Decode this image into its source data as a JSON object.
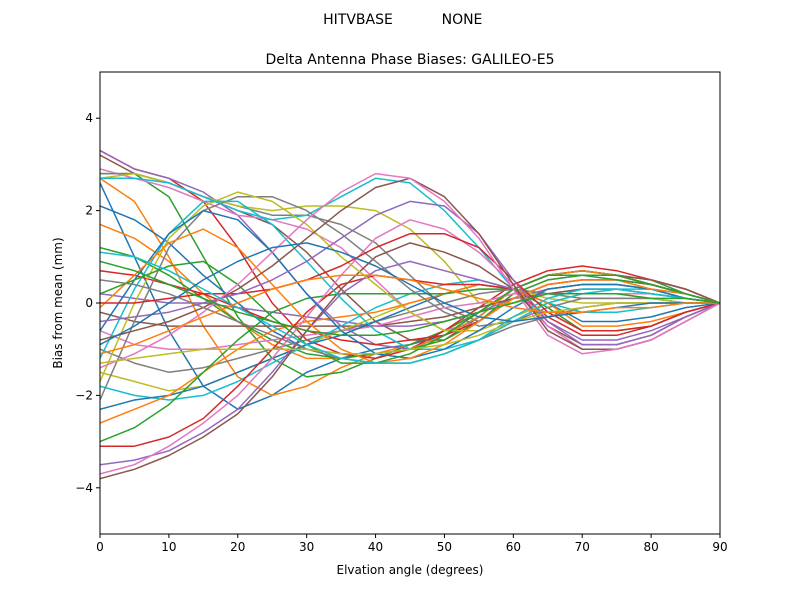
{
  "chart_data": {
    "type": "line",
    "suptitle_left": "HITVBASE",
    "suptitle_right": "NONE",
    "title": "Delta Antenna Phase Biases: GALILEO-E5",
    "xlabel": "Elvation angle (degrees)",
    "ylabel": "Bias from mean (mm)",
    "xlim": [
      0,
      90
    ],
    "ylim": [
      -5,
      5
    ],
    "xticks": [
      0,
      10,
      20,
      30,
      40,
      50,
      60,
      70,
      80,
      90
    ],
    "yticks": [
      -4,
      -2,
      0,
      2,
      4
    ],
    "ytick_labels": [
      "−4",
      "−2",
      "0",
      "2",
      "4"
    ],
    "grid": false,
    "legend": "none",
    "x": [
      0,
      5,
      10,
      15,
      20,
      25,
      30,
      35,
      40,
      45,
      50,
      55,
      60,
      65,
      70,
      75,
      80,
      85,
      90
    ],
    "palette": [
      "#1f77b4",
      "#ff7f0e",
      "#2ca02c",
      "#d62728",
      "#9467bd",
      "#8c564b",
      "#e377c2",
      "#7f7f7f",
      "#bcbd22",
      "#17becf"
    ],
    "series": [
      {
        "values": [
          2.6,
          1.0,
          -0.6,
          -1.8,
          -2.3,
          -2.0,
          -1.5,
          -1.2,
          -1.0,
          -0.9,
          -0.7,
          -0.3,
          0.3,
          0.6,
          0.7,
          0.6,
          0.4,
          0.2,
          0.0
        ]
      },
      {
        "values": [
          2.7,
          2.2,
          1.0,
          -0.5,
          -1.6,
          -2.0,
          -1.8,
          -1.4,
          -1.1,
          -0.9,
          -0.6,
          -0.2,
          0.3,
          0.6,
          0.7,
          0.6,
          0.4,
          0.2,
          0.0
        ]
      },
      {
        "values": [
          2.8,
          2.8,
          2.3,
          1.0,
          -0.3,
          -1.2,
          -1.6,
          -1.5,
          -1.2,
          -0.9,
          -0.6,
          -0.2,
          0.3,
          0.6,
          0.7,
          0.6,
          0.5,
          0.2,
          0.0
        ]
      },
      {
        "values": [
          3.3,
          2.9,
          2.7,
          2.2,
          1.2,
          0.0,
          -0.8,
          -1.1,
          -1.2,
          -1.0,
          -0.6,
          -0.1,
          0.4,
          0.7,
          0.8,
          0.7,
          0.5,
          0.3,
          0.0
        ]
      },
      {
        "values": [
          3.3,
          2.9,
          2.7,
          2.4,
          1.9,
          1.1,
          0.2,
          -0.5,
          -0.9,
          -1.0,
          -0.7,
          -0.2,
          0.3,
          0.6,
          0.7,
          0.6,
          0.5,
          0.3,
          0.0
        ]
      },
      {
        "values": [
          3.2,
          2.8,
          2.6,
          2.3,
          2.0,
          1.7,
          1.1,
          0.3,
          -0.4,
          -0.8,
          -0.8,
          -0.3,
          0.3,
          0.6,
          0.7,
          0.6,
          0.5,
          0.3,
          0.0
        ]
      },
      {
        "values": [
          2.9,
          2.7,
          2.5,
          2.2,
          1.9,
          1.8,
          1.6,
          1.2,
          0.5,
          -0.2,
          -0.6,
          -0.4,
          0.2,
          0.5,
          0.6,
          0.6,
          0.4,
          0.2,
          0.0
        ]
      },
      {
        "values": [
          2.8,
          2.8,
          2.6,
          2.3,
          2.1,
          1.9,
          1.9,
          1.7,
          1.3,
          0.6,
          -0.1,
          -0.4,
          0.1,
          0.4,
          0.5,
          0.5,
          0.4,
          0.2,
          0.0
        ]
      },
      {
        "values": [
          2.7,
          2.8,
          2.6,
          2.3,
          2.1,
          2.0,
          2.1,
          2.1,
          2.0,
          1.6,
          0.9,
          0.0,
          0.0,
          0.3,
          0.4,
          0.4,
          0.3,
          0.2,
          0.0
        ]
      },
      {
        "values": [
          2.7,
          2.7,
          2.6,
          2.3,
          2.0,
          1.8,
          1.9,
          2.3,
          2.7,
          2.6,
          2.0,
          1.2,
          0.3,
          0.2,
          0.3,
          0.3,
          0.3,
          0.1,
          0.0
        ]
      },
      {
        "values": [
          2.1,
          1.8,
          1.3,
          0.6,
          0.0,
          -0.6,
          -1.0,
          -1.1,
          -1.1,
          -1.0,
          -0.7,
          -0.3,
          0.3,
          0.6,
          0.7,
          0.6,
          0.4,
          0.2,
          0.0
        ]
      },
      {
        "values": [
          1.7,
          1.4,
          0.9,
          0.2,
          -0.4,
          -0.9,
          -1.2,
          -1.2,
          -1.1,
          -1.0,
          -0.7,
          -0.3,
          0.3,
          0.6,
          0.7,
          0.6,
          0.4,
          0.2,
          0.0
        ]
      },
      {
        "values": [
          1.2,
          1.0,
          0.6,
          0.1,
          -0.4,
          -0.8,
          -1.1,
          -1.2,
          -1.1,
          -1.0,
          -0.8,
          -0.4,
          0.2,
          0.5,
          0.6,
          0.6,
          0.4,
          0.2,
          0.0
        ]
      },
      {
        "values": [
          0.7,
          0.6,
          0.4,
          0.2,
          -0.1,
          -0.4,
          -0.6,
          -0.8,
          -0.9,
          -0.8,
          -0.7,
          -0.4,
          0.1,
          0.4,
          0.5,
          0.5,
          0.4,
          0.2,
          0.0
        ]
      },
      {
        "values": [
          0.2,
          0.1,
          0.0,
          0.0,
          -0.1,
          -0.2,
          -0.3,
          -0.4,
          -0.5,
          -0.5,
          -0.4,
          -0.2,
          0.1,
          0.3,
          0.4,
          0.4,
          0.3,
          0.2,
          0.0
        ]
      },
      {
        "values": [
          -0.2,
          -0.4,
          -0.5,
          -0.5,
          -0.5,
          -0.5,
          -0.5,
          -0.5,
          -0.5,
          -0.4,
          -0.3,
          -0.1,
          0.1,
          0.2,
          0.3,
          0.3,
          0.2,
          0.1,
          0.0
        ]
      },
      {
        "values": [
          -0.6,
          -0.9,
          -1.0,
          -1.0,
          -0.9,
          -0.8,
          -0.7,
          -0.6,
          -0.5,
          -0.3,
          -0.1,
          0.0,
          0.2,
          0.2,
          0.2,
          0.2,
          0.2,
          0.1,
          0.0
        ]
      },
      {
        "values": [
          -1.0,
          -1.3,
          -1.5,
          -1.4,
          -1.2,
          -1.0,
          -0.8,
          -0.6,
          -0.4,
          -0.2,
          0.0,
          0.2,
          0.3,
          0.2,
          0.1,
          0.1,
          0.1,
          0.0,
          0.0
        ]
      },
      {
        "values": [
          -1.5,
          -1.7,
          -1.9,
          -1.8,
          -1.5,
          -1.2,
          -0.9,
          -0.6,
          -0.3,
          0.0,
          0.2,
          0.3,
          0.3,
          0.1,
          0.0,
          0.0,
          0.0,
          0.0,
          0.0
        ]
      },
      {
        "values": [
          -1.8,
          -2.0,
          -2.1,
          -2.0,
          -1.7,
          -1.3,
          -0.9,
          -0.5,
          -0.1,
          0.2,
          0.4,
          0.5,
          0.3,
          0.0,
          -0.2,
          -0.2,
          -0.1,
          0.0,
          0.0
        ]
      },
      {
        "values": [
          -2.3,
          -2.1,
          -2.0,
          -1.8,
          -1.5,
          -1.2,
          -0.9,
          -0.7,
          -0.4,
          -0.1,
          0.2,
          0.4,
          0.3,
          0.0,
          -0.4,
          -0.4,
          -0.3,
          -0.1,
          0.0
        ]
      },
      {
        "values": [
          -2.6,
          -2.3,
          -2.0,
          -1.5,
          -1.0,
          -0.6,
          -0.4,
          -0.3,
          -0.2,
          0.0,
          0.2,
          0.4,
          0.3,
          0.0,
          -0.5,
          -0.5,
          -0.4,
          -0.2,
          0.0
        ]
      },
      {
        "values": [
          -3.0,
          -2.7,
          -2.2,
          -1.5,
          -0.8,
          -0.2,
          0.1,
          0.2,
          0.2,
          0.2,
          0.2,
          0.3,
          0.3,
          -0.1,
          -0.6,
          -0.6,
          -0.5,
          -0.2,
          0.0
        ]
      },
      {
        "values": [
          -3.1,
          -3.1,
          -2.9,
          -2.5,
          -1.8,
          -1.0,
          -0.2,
          0.4,
          0.6,
          0.5,
          0.4,
          0.4,
          0.3,
          -0.3,
          -0.7,
          -0.7,
          -0.5,
          -0.2,
          0.0
        ]
      },
      {
        "values": [
          -3.5,
          -3.4,
          -3.2,
          -2.8,
          -2.3,
          -1.5,
          -0.6,
          0.2,
          0.7,
          0.9,
          0.7,
          0.5,
          0.3,
          -0.4,
          -0.8,
          -0.8,
          -0.6,
          -0.3,
          0.0
        ]
      },
      {
        "values": [
          -3.8,
          -3.6,
          -3.3,
          -2.9,
          -2.4,
          -1.6,
          -0.6,
          0.3,
          1.0,
          1.3,
          1.1,
          0.8,
          0.3,
          -0.5,
          -0.9,
          -0.9,
          -0.7,
          -0.3,
          0.0
        ]
      },
      {
        "values": [
          -3.7,
          -3.5,
          -3.1,
          -2.6,
          -2.0,
          -1.2,
          -0.3,
          0.6,
          1.4,
          1.8,
          1.6,
          1.1,
          0.4,
          -0.5,
          -1.0,
          -1.0,
          -0.8,
          -0.4,
          0.0
        ]
      },
      {
        "values": [
          -2.1,
          -0.4,
          1.2,
          2.0,
          2.3,
          2.3,
          2.0,
          1.5,
          0.9,
          0.3,
          -0.2,
          -0.5,
          -0.4,
          -0.1,
          0.1,
          0.1,
          0.1,
          0.0,
          0.0
        ]
      },
      {
        "values": [
          -1.7,
          0.0,
          1.4,
          2.1,
          2.4,
          2.2,
          1.7,
          1.0,
          0.4,
          -0.2,
          -0.6,
          -0.6,
          -0.3,
          0.0,
          0.2,
          0.2,
          0.1,
          0.0,
          0.0
        ]
      },
      {
        "values": [
          -1.2,
          0.3,
          1.5,
          2.2,
          2.2,
          1.7,
          0.9,
          0.1,
          -0.6,
          -1.0,
          -1.0,
          -0.8,
          -0.3,
          0.1,
          0.3,
          0.3,
          0.2,
          0.1,
          0.0
        ]
      },
      {
        "values": [
          -0.6,
          0.5,
          1.5,
          2.0,
          1.8,
          1.1,
          0.2,
          -0.6,
          -1.1,
          -1.2,
          -1.0,
          -0.6,
          -0.1,
          0.3,
          0.4,
          0.4,
          0.3,
          0.1,
          0.0
        ]
      },
      {
        "values": [
          -0.1,
          0.6,
          1.3,
          1.6,
          1.2,
          0.4,
          -0.4,
          -1.0,
          -1.3,
          -1.2,
          -0.9,
          -0.4,
          0.1,
          0.4,
          0.5,
          0.5,
          0.3,
          0.2,
          0.0
        ]
      },
      {
        "values": [
          0.2,
          0.5,
          0.8,
          0.9,
          0.4,
          -0.3,
          -0.9,
          -1.3,
          -1.3,
          -1.1,
          -0.7,
          -0.2,
          0.3,
          0.6,
          0.6,
          0.5,
          0.4,
          0.2,
          0.0
        ]
      },
      {
        "values": [
          0.0,
          0.0,
          0.1,
          0.2,
          0.2,
          0.3,
          0.5,
          0.8,
          1.2,
          1.5,
          1.5,
          1.2,
          0.5,
          -0.2,
          -0.6,
          -0.6,
          -0.5,
          -0.2,
          0.0
        ]
      },
      {
        "values": [
          -0.4,
          -0.3,
          -0.2,
          0.0,
          0.2,
          0.5,
          0.9,
          1.4,
          1.9,
          2.2,
          2.1,
          1.5,
          0.5,
          -0.4,
          -0.9,
          -0.9,
          -0.7,
          -0.3,
          0.0
        ]
      },
      {
        "values": [
          -0.8,
          -0.6,
          -0.4,
          -0.1,
          0.3,
          0.8,
          1.4,
          2.0,
          2.5,
          2.7,
          2.3,
          1.5,
          0.4,
          -0.6,
          -1.0,
          -1.0,
          -0.8,
          -0.4,
          0.0
        ]
      },
      {
        "values": [
          -1.4,
          -1.1,
          -0.7,
          -0.2,
          0.4,
          1.1,
          1.8,
          2.4,
          2.8,
          2.7,
          2.2,
          1.4,
          0.3,
          -0.7,
          -1.1,
          -1.0,
          -0.8,
          -0.4,
          0.0
        ]
      },
      {
        "values": [
          0.5,
          0.4,
          0.2,
          -0.1,
          -0.4,
          -0.7,
          -1.0,
          -1.2,
          -1.3,
          -1.3,
          -1.1,
          -0.8,
          -0.5,
          -0.3,
          -0.1,
          0.0,
          0.0,
          0.0,
          0.0
        ]
      },
      {
        "values": [
          -1.3,
          -1.2,
          -1.1,
          -1.0,
          -1.0,
          -1.0,
          -1.0,
          -1.1,
          -1.1,
          -1.0,
          -0.9,
          -0.7,
          -0.4,
          -0.2,
          -0.1,
          0.0,
          0.0,
          0.0,
          0.0
        ]
      },
      {
        "values": [
          1.1,
          1.0,
          0.7,
          0.3,
          -0.1,
          -0.5,
          -0.9,
          -1.2,
          -1.3,
          -1.3,
          -1.1,
          -0.8,
          -0.4,
          0.0,
          0.2,
          0.3,
          0.2,
          0.1,
          0.0
        ]
      },
      {
        "values": [
          -0.9,
          -0.5,
          0.0,
          0.5,
          0.9,
          1.2,
          1.3,
          1.1,
          0.8,
          0.4,
          0.0,
          -0.3,
          -0.4,
          -0.3,
          -0.2,
          -0.1,
          0.0,
          0.0,
          0.0
        ]
      },
      {
        "values": [
          -1.1,
          -0.9,
          -0.6,
          -0.3,
          0.0,
          0.3,
          0.5,
          0.6,
          0.6,
          0.5,
          0.3,
          0.1,
          -0.1,
          -0.2,
          -0.2,
          -0.1,
          -0.1,
          0.0,
          0.0
        ]
      },
      {
        "values": [
          0.9,
          0.7,
          0.4,
          0.1,
          -0.2,
          -0.4,
          -0.6,
          -0.7,
          -0.7,
          -0.6,
          -0.4,
          -0.2,
          0.0,
          0.2,
          0.2,
          0.2,
          0.1,
          0.1,
          0.0
        ]
      }
    ]
  }
}
